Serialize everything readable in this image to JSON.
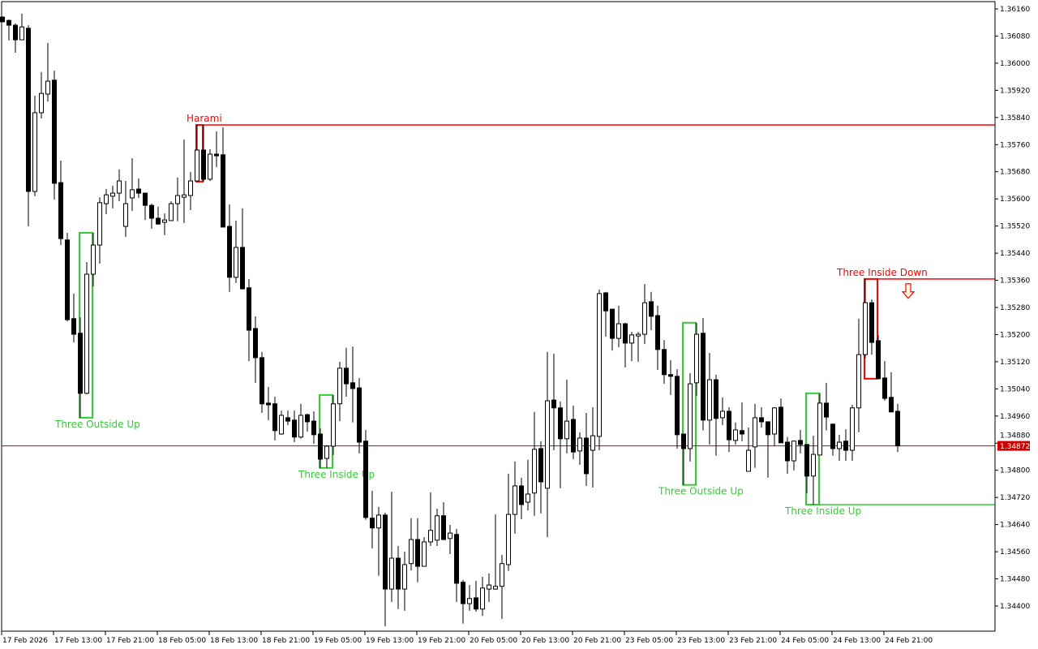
{
  "chart_data": {
    "type": "candlestick",
    "timeframe_hours": 1,
    "ylim": [
      1.3436,
      1.3618
    ],
    "grid": false,
    "colors": {
      "bear_body": "#000000",
      "bull_body": "#ffffff",
      "outline": "#000000",
      "bullish_pattern": "#32cd32",
      "bearish_pattern": "#ff0000",
      "current_price": "#cc0000",
      "background": "#ffffff"
    },
    "y_ticks": [
      "1.36160",
      "1.36080",
      "1.36000",
      "1.35920",
      "1.35840",
      "1.35760",
      "1.35680",
      "1.35600",
      "1.35520",
      "1.35440",
      "1.35360",
      "1.35280",
      "1.35200",
      "1.35120",
      "1.35040",
      "1.34960",
      "1.34880",
      "1.34800",
      "1.34720",
      "1.34640",
      "1.34560",
      "1.34480",
      "1.34400"
    ],
    "x_ticks": [
      {
        "candle": 0,
        "label": "17 Feb 2026"
      },
      {
        "candle": 8,
        "label": "17 Feb 13:00"
      },
      {
        "candle": 16,
        "label": "17 Feb 21:00"
      },
      {
        "candle": 24,
        "label": "18 Feb 05:00"
      },
      {
        "candle": 32,
        "label": "18 Feb 13:00"
      },
      {
        "candle": 40,
        "label": "18 Feb 21:00"
      },
      {
        "candle": 48,
        "label": "19 Feb 05:00"
      },
      {
        "candle": 56,
        "label": "19 Feb 13:00"
      },
      {
        "candle": 64,
        "label": "19 Feb 21:00"
      },
      {
        "candle": 72,
        "label": "20 Feb 05:00"
      },
      {
        "candle": 80,
        "label": "20 Feb 13:00"
      },
      {
        "candle": 88,
        "label": "20 Feb 21:00"
      },
      {
        "candle": 96,
        "label": "23 Feb 05:00"
      },
      {
        "candle": 104,
        "label": "23 Feb 13:00"
      },
      {
        "candle": 112,
        "label": "23 Feb 21:00"
      },
      {
        "candle": 120,
        "label": "24 Feb 05:00"
      },
      {
        "candle": 128,
        "label": "24 Feb 13:00"
      },
      {
        "candle": 136,
        "label": "24 Feb 21:00"
      }
    ],
    "current_price": "1.34872",
    "ohlc": [
      [
        1.36136,
        1.36138,
        1.36122,
        1.36122
      ],
      [
        1.36126,
        1.36129,
        1.36067,
        1.36112
      ],
      [
        1.36112,
        1.36117,
        1.36031,
        1.36069
      ],
      [
        1.36069,
        1.36146,
        1.36069,
        1.36107
      ],
      [
        1.36103,
        1.36112,
        1.35519,
        1.35622
      ],
      [
        1.35622,
        1.35904,
        1.35608,
        1.35854
      ],
      [
        1.35854,
        1.35974,
        1.35837,
        1.35911
      ],
      [
        1.35909,
        1.3606,
        1.35887,
        1.35947
      ],
      [
        1.3595,
        1.35978,
        1.35598,
        1.35646
      ],
      [
        1.35648,
        1.35713,
        1.35464,
        1.35483
      ],
      [
        1.35479,
        1.355,
        1.35239,
        1.35244
      ],
      [
        1.35247,
        1.35321,
        1.35177,
        1.35201
      ],
      [
        1.35204,
        1.35251,
        1.34955,
        1.35027
      ],
      [
        1.35027,
        1.35414,
        1.35024,
        1.35378
      ],
      [
        1.35378,
        1.355,
        1.35342,
        1.35464
      ],
      [
        1.35464,
        1.35605,
        1.35409,
        1.35589
      ],
      [
        1.35586,
        1.35629,
        1.35555,
        1.35612
      ],
      [
        1.35608,
        1.35639,
        1.35572,
        1.35617
      ],
      [
        1.35617,
        1.35687,
        1.35593,
        1.35653
      ],
      [
        1.35519,
        1.35653,
        1.35488,
        1.35586
      ],
      [
        1.35603,
        1.3572,
        1.35565,
        1.35627
      ],
      [
        1.35629,
        1.3566,
        1.35603,
        1.35617
      ],
      [
        1.35617,
        1.35617,
        1.35538,
        1.35581
      ],
      [
        1.35581,
        1.35586,
        1.35512,
        1.35543
      ],
      [
        1.35543,
        1.35577,
        1.35524,
        1.35526
      ],
      [
        1.35531,
        1.35557,
        1.35493,
        1.35538
      ],
      [
        1.35536,
        1.35593,
        1.35536,
        1.35586
      ],
      [
        1.35586,
        1.35663,
        1.35534,
        1.3561
      ],
      [
        1.35605,
        1.35775,
        1.35529,
        1.35612
      ],
      [
        1.3561,
        1.35679,
        1.35567,
        1.35653
      ],
      [
        1.35653,
        1.35818,
        1.35653,
        1.35744
      ],
      [
        1.35744,
        1.35818,
        1.35651,
        1.35658
      ],
      [
        1.35658,
        1.35746,
        1.35653,
        1.35732
      ],
      [
        1.35732,
        1.35799,
        1.35694,
        1.35727
      ],
      [
        1.3573,
        1.35811,
        1.35517,
        1.35517
      ],
      [
        1.35519,
        1.35584,
        1.35326,
        1.35369
      ],
      [
        1.35369,
        1.35536,
        1.35352,
        1.35457
      ],
      [
        1.35457,
        1.35572,
        1.35333,
        1.35335
      ],
      [
        1.35338,
        1.35364,
        1.35122,
        1.35213
      ],
      [
        1.35218,
        1.35254,
        1.35058,
        1.35132
      ],
      [
        1.35132,
        1.35149,
        1.34969,
        1.34996
      ],
      [
        1.34998,
        1.35046,
        1.34948,
        1.34993
      ],
      [
        1.34996,
        1.35017,
        1.34888,
        1.34917
      ],
      [
        1.34907,
        1.34976,
        1.34905,
        1.34962
      ],
      [
        1.34955,
        1.34976,
        1.34933,
        1.34945
      ],
      [
        1.34948,
        1.34976,
        1.34883,
        1.34898
      ],
      [
        1.34898,
        1.34996,
        1.34893,
        1.34962
      ],
      [
        1.34964,
        1.34967,
        1.34914,
        1.34943
      ],
      [
        1.34945,
        1.34974,
        1.34878,
        1.34905
      ],
      [
        1.34907,
        1.34924,
        1.34807,
        1.34833
      ],
      [
        1.34835,
        1.34874,
        1.34807,
        1.34871
      ],
      [
        1.34871,
        1.35022,
        1.34845,
        1.34996
      ],
      [
        1.34996,
        1.3512,
        1.34945,
        1.35101
      ],
      [
        1.35101,
        1.35161,
        1.35017,
        1.35055
      ],
      [
        1.35058,
        1.35165,
        1.34941,
        1.35041
      ],
      [
        1.35043,
        1.35072,
        1.3485,
        1.34883
      ],
      [
        1.34886,
        1.34919,
        1.34654,
        1.34661
      ],
      [
        1.34659,
        1.3474,
        1.3457,
        1.3463
      ],
      [
        1.3463,
        1.34692,
        1.34489,
        1.34668
      ],
      [
        1.34668,
        1.34675,
        1.3434,
        1.3445
      ],
      [
        1.3445,
        1.34737,
        1.34412,
        1.34541
      ],
      [
        1.34541,
        1.34577,
        1.34391,
        1.3445
      ],
      [
        1.3445,
        1.3456,
        1.34386,
        1.34522
      ],
      [
        1.34525,
        1.34659,
        1.34505,
        1.34596
      ],
      [
        1.34596,
        1.34659,
        1.3447,
        1.34517
      ],
      [
        1.34517,
        1.34603,
        1.34517,
        1.34589
      ],
      [
        1.34589,
        1.34735,
        1.34577,
        1.34623
      ],
      [
        1.34594,
        1.34687,
        1.34577,
        1.34666
      ],
      [
        1.34666,
        1.34706,
        1.34594,
        1.34596
      ],
      [
        1.34599,
        1.34639,
        1.34553,
        1.34615
      ],
      [
        1.34611,
        1.34627,
        1.34412,
        1.34467
      ],
      [
        1.3447,
        1.34477,
        1.34348,
        1.34407
      ],
      [
        1.34407,
        1.34462,
        1.34386,
        1.34422
      ],
      [
        1.34424,
        1.34474,
        1.34383,
        1.34391
      ],
      [
        1.34391,
        1.34486,
        1.34371,
        1.34453
      ],
      [
        1.3445,
        1.34496,
        1.34412,
        1.34462
      ],
      [
        1.3445,
        1.3467,
        1.34448,
        1.34458
      ],
      [
        1.34458,
        1.34551,
        1.34362,
        1.34525
      ],
      [
        1.34522,
        1.3479,
        1.34503,
        1.3467
      ],
      [
        1.3467,
        1.34826,
        1.34613,
        1.34754
      ],
      [
        1.34754,
        1.34778,
        1.34656,
        1.34699
      ],
      [
        1.34706,
        1.34831,
        1.34682,
        1.3473
      ],
      [
        1.34733,
        1.34972,
        1.34666,
        1.34862
      ],
      [
        1.34864,
        1.34886,
        1.34673,
        1.34766
      ],
      [
        1.34747,
        1.35149,
        1.34603,
        1.35005
      ],
      [
        1.35007,
        1.35144,
        1.34859,
        1.34984
      ],
      [
        1.34984,
        1.35003,
        1.34747,
        1.34893
      ],
      [
        1.34893,
        1.35067,
        1.3485,
        1.34945
      ],
      [
        1.3495,
        1.34991,
        1.34833,
        1.34854
      ],
      [
        1.34857,
        1.34912,
        1.34816,
        1.34895
      ],
      [
        1.34895,
        1.34969,
        1.34754,
        1.3479
      ],
      [
        1.34859,
        1.34986,
        1.34749,
        1.34902
      ],
      [
        1.349,
        1.35333,
        1.34859,
        1.35321
      ],
      [
        1.35323,
        1.35326,
        1.35194,
        1.3527
      ],
      [
        1.35275,
        1.35275,
        1.35153,
        1.35189
      ],
      [
        1.35189,
        1.35285,
        1.35163,
        1.35232
      ],
      [
        1.35232,
        1.35235,
        1.35103,
        1.35175
      ],
      [
        1.35175,
        1.35208,
        1.35122,
        1.35199
      ],
      [
        1.35196,
        1.35208,
        1.3512,
        1.35201
      ],
      [
        1.35201,
        1.35349,
        1.35172,
        1.35294
      ],
      [
        1.35297,
        1.35326,
        1.35213,
        1.35254
      ],
      [
        1.35256,
        1.35285,
        1.35096,
        1.35156
      ],
      [
        1.35156,
        1.35184,
        1.35055,
        1.35082
      ],
      [
        1.35082,
        1.35125,
        1.35022,
        1.35077
      ],
      [
        1.35077,
        1.35098,
        1.34864,
        1.34905
      ],
      [
        1.34907,
        1.34907,
        1.34757,
        1.34864
      ],
      [
        1.34864,
        1.35086,
        1.34826,
        1.35055
      ],
      [
        1.35058,
        1.35235,
        1.3502,
        1.35201
      ],
      [
        1.35204,
        1.35249,
        1.34917,
        1.34948
      ],
      [
        1.34948,
        1.35146,
        1.34876,
        1.35067
      ],
      [
        1.35067,
        1.35082,
        1.34843,
        1.34953
      ],
      [
        1.34955,
        1.35015,
        1.34933,
        1.34974
      ],
      [
        1.34974,
        1.34986,
        1.34854,
        1.3489
      ],
      [
        1.34888,
        1.34941,
        1.34876,
        1.34919
      ],
      [
        1.34917,
        1.35,
        1.34886,
        1.34907
      ],
      [
        1.34797,
        1.34926,
        1.34797,
        1.34859
      ],
      [
        1.34869,
        1.34996,
        1.34807,
        1.34955
      ],
      [
        1.34955,
        1.34986,
        1.34926,
        1.34943
      ],
      [
        1.34943,
        1.34943,
        1.34778,
        1.34905
      ],
      [
        1.34907,
        1.34986,
        1.34871,
        1.34984
      ],
      [
        1.34986,
        1.35012,
        1.34881,
        1.34881
      ],
      [
        1.34883,
        1.34898,
        1.3479,
        1.34828
      ],
      [
        1.34828,
        1.34888,
        1.348,
        1.34886
      ],
      [
        1.34888,
        1.34919,
        1.3485,
        1.34876
      ],
      [
        1.34876,
        1.34876,
        1.34733,
        1.34783
      ],
      [
        1.34783,
        1.34902,
        1.34699,
        1.34847
      ],
      [
        1.34845,
        1.35027,
        1.34845,
        1.34998
      ],
      [
        1.34998,
        1.35058,
        1.34917,
        1.34957
      ],
      [
        1.34936,
        1.34938,
        1.34843,
        1.34864
      ],
      [
        1.34864,
        1.34905,
        1.34828,
        1.34883
      ],
      [
        1.34886,
        1.34921,
        1.34828,
        1.34859
      ],
      [
        1.34859,
        1.34993,
        1.34828,
        1.34984
      ],
      [
        1.34984,
        1.35247,
        1.34912,
        1.35141
      ],
      [
        1.35141,
        1.35364,
        1.3513,
        1.35294
      ],
      [
        1.35294,
        1.35304,
        1.35141,
        1.35177
      ],
      [
        1.35182,
        1.35199,
        1.3507,
        1.3507
      ],
      [
        1.35072,
        1.35122,
        1.35005,
        1.35012
      ],
      [
        1.35015,
        1.35089,
        1.34972,
        1.34972
      ],
      [
        1.34974,
        1.34996,
        1.34854,
        1.34872
      ]
    ],
    "patterns": [
      {
        "name": "Three Outside Up",
        "type": "bullish",
        "from": 12,
        "to": 14,
        "high": 1.355,
        "low": 1.34955,
        "extend": "none"
      },
      {
        "name": "Harami",
        "type": "bearish",
        "from": 30,
        "to": 31,
        "high": 1.35818,
        "low": 1.35651,
        "extend": "high"
      },
      {
        "name": "Three Inside Up",
        "type": "bullish",
        "from": 49,
        "to": 51,
        "high": 1.35022,
        "low": 1.34807,
        "extend": "none"
      },
      {
        "name": "Three Outside Up",
        "type": "bullish",
        "from": 105,
        "to": 107,
        "high": 1.35235,
        "low": 1.34757,
        "extend": "none"
      },
      {
        "name": "Three Inside Up",
        "type": "bullish",
        "from": 124,
        "to": 126,
        "high": 1.35027,
        "low": 1.34699,
        "extend": "low"
      },
      {
        "name": "Three Inside Down",
        "type": "bearish",
        "from": 133,
        "to": 135,
        "high": 1.35364,
        "low": 1.3507,
        "extend": "high"
      }
    ],
    "signal_arrow": {
      "icon": "sell-arrow-down-icon",
      "candle": 140,
      "price": 1.3535
    }
  }
}
